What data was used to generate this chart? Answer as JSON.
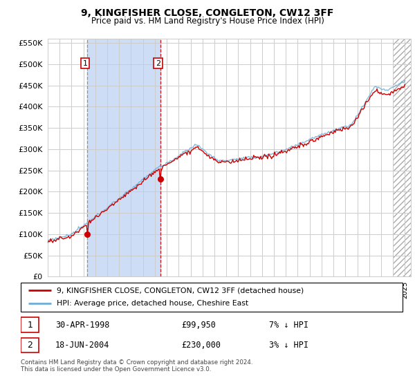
{
  "title": "9, KINGFISHER CLOSE, CONGLETON, CW12 3FF",
  "subtitle": "Price paid vs. HM Land Registry's House Price Index (HPI)",
  "legend_line1": "9, KINGFISHER CLOSE, CONGLETON, CW12 3FF (detached house)",
  "legend_line2": "HPI: Average price, detached house, Cheshire East",
  "footnote": "Contains HM Land Registry data © Crown copyright and database right 2024.\nThis data is licensed under the Open Government Licence v3.0.",
  "sale1_date": "30-APR-1998",
  "sale1_price": "£99,950",
  "sale1_hpi": "7% ↓ HPI",
  "sale2_date": "18-JUN-2004",
  "sale2_price": "£230,000",
  "sale2_hpi": "3% ↓ HPI",
  "ylim": [
    0,
    560000
  ],
  "yticks": [
    0,
    50000,
    100000,
    150000,
    200000,
    250000,
    300000,
    350000,
    400000,
    450000,
    500000,
    550000
  ],
  "hpi_color": "#6baed6",
  "price_color": "#cc0000",
  "bg_color": "#ddeeff",
  "shade_between_color": "#ccddf5",
  "grid_color": "#cccccc",
  "sale1_x": 1998.33,
  "sale1_y": 99950,
  "sale2_x": 2004.46,
  "sale2_y": 230000,
  "xlim_left": 1995.0,
  "xlim_right": 2025.5,
  "hatch_start": 2024.0
}
